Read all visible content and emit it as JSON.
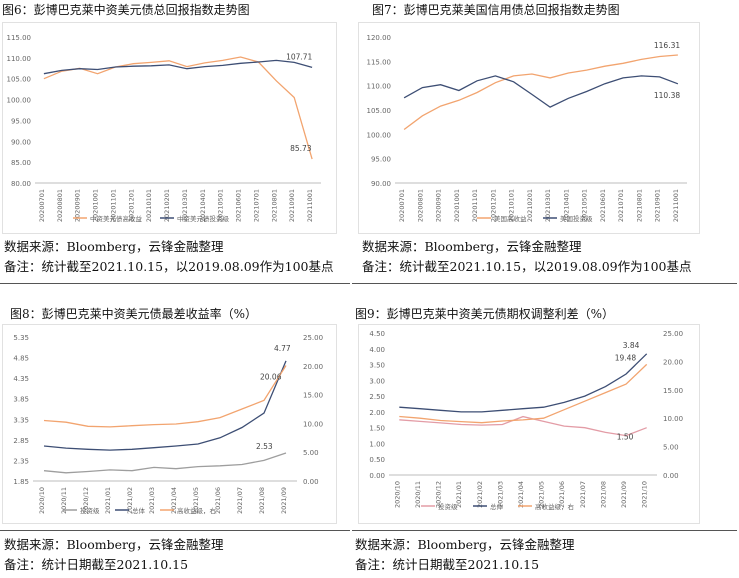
{
  "colors": {
    "orange": "#f2a46f",
    "navy": "#3d4e74",
    "gray": "#9e9e9e",
    "rose": "#e39ca6"
  },
  "panels": [
    {
      "title": "图6：彭博巴克莱中资美元债总回报指数走势图",
      "source": "数据来源：Bloomberg，云锋金融整理",
      "note": "备注：统计截至2021.10.15，以2019.08.09作为100基点"
    },
    {
      "title": "图7：彭博巴克莱美国信用债总回报指数走势图",
      "source": "数据来源：Bloomberg，云锋金融整理",
      "note": "备注：统计截至2021.10.15，以2019.08.09作为100基点"
    },
    {
      "title": "图8：彭博巴克莱中资美元债最差收益率（%）",
      "source": "数据来源：Bloomberg，云锋金融整理",
      "note": "备注：统计日期截至2021.10.15"
    },
    {
      "title": "图9：彭博巴克莱中资美元债期权调整利差（%）",
      "source": "数据来源：Bloomberg，云锋金融整理",
      "note": "备注：统计日期截至2021.10.15"
    }
  ],
  "chart_data": [
    {
      "type": "line",
      "title": "图6：彭博巴克莱中资美元债总回报指数走势图",
      "x": [
        "20200701",
        "20200801",
        "20200901",
        "20201001",
        "20201101",
        "20201201",
        "20210101",
        "20210201",
        "20210301",
        "20210401",
        "20210501",
        "20210601",
        "20210701",
        "20210801",
        "20210901",
        "20211001"
      ],
      "yticks": [
        "80.00",
        "85.00",
        "90.00",
        "95.00",
        "100.00",
        "105.00",
        "110.00",
        "115.00"
      ],
      "ylim": [
        80,
        115
      ],
      "series": [
        {
          "name": "中资美元债高收益",
          "color": "#f2a46f",
          "values": [
            105.0,
            106.8,
            107.5,
            106.2,
            107.8,
            108.6,
            108.9,
            109.3,
            107.9,
            108.8,
            109.4,
            110.2,
            109.0,
            104.5,
            100.5,
            85.73
          ]
        },
        {
          "name": "中资美元债投资级",
          "color": "#3d4e74",
          "values": [
            106.2,
            107.0,
            107.4,
            107.2,
            107.8,
            108.0,
            108.1,
            108.3,
            107.4,
            107.9,
            108.2,
            108.7,
            109.0,
            109.4,
            108.9,
            107.71
          ]
        }
      ],
      "labels": [
        {
          "text": "107.71"
        },
        {
          "text": "85.73"
        }
      ]
    },
    {
      "type": "line",
      "title": "图7：彭博巴克莱美国信用债总回报指数走势图",
      "x": [
        "20200701",
        "20200801",
        "20200901",
        "20201001",
        "20201101",
        "20201201",
        "20210101",
        "20210201",
        "20210301",
        "20210401",
        "20210501",
        "20210601",
        "20210701",
        "20210801",
        "20210901",
        "20211001"
      ],
      "yticks": [
        "90.00",
        "95.00",
        "100.00",
        "105.00",
        "110.00",
        "115.00",
        "120.00"
      ],
      "ylim": [
        90,
        120
      ],
      "series": [
        {
          "name": "美国高收益",
          "color": "#f2a46f",
          "values": [
            101.0,
            103.8,
            105.8,
            107.0,
            108.6,
            110.6,
            112.0,
            112.4,
            111.6,
            112.6,
            113.2,
            114.0,
            114.6,
            115.4,
            116.0,
            116.31
          ]
        },
        {
          "name": "美国投资级",
          "color": "#3d4e74",
          "values": [
            107.5,
            109.6,
            110.2,
            109.0,
            111.0,
            112.0,
            110.8,
            108.2,
            105.6,
            107.4,
            108.8,
            110.4,
            111.6,
            112.0,
            111.8,
            110.38
          ]
        }
      ],
      "labels": [
        {
          "text": "116.31"
        },
        {
          "text": "110.38"
        }
      ]
    },
    {
      "type": "line",
      "title": "图8：彭博巴克莱中资美元债最差收益率（%）",
      "x": [
        "2020/10",
        "2020/11",
        "2020/12",
        "2021/01",
        "2021/02",
        "2021/03",
        "2021/04",
        "2021/05",
        "2021/06",
        "2021/07",
        "2021/08",
        "2021/09"
      ],
      "yticks_left": [
        "1.85",
        "2.35",
        "2.85",
        "3.35",
        "3.85",
        "4.35",
        "4.85",
        "5.35"
      ],
      "yticks_right": [
        "0.00",
        "5.00",
        "10.00",
        "15.00",
        "20.00",
        "25.00"
      ],
      "ylim_left": [
        1.85,
        5.35
      ],
      "ylim_right": [
        0,
        25
      ],
      "series": [
        {
          "name": "投资级",
          "axis": "left",
          "color": "#9e9e9e",
          "values": [
            2.1,
            2.05,
            2.08,
            2.12,
            2.1,
            2.18,
            2.15,
            2.2,
            2.22,
            2.25,
            2.35,
            2.53
          ]
        },
        {
          "name": "总体",
          "axis": "left",
          "color": "#3d4e74",
          "values": [
            2.7,
            2.65,
            2.62,
            2.6,
            2.62,
            2.66,
            2.7,
            2.75,
            2.9,
            3.15,
            3.5,
            4.77
          ]
        },
        {
          "name": "高收益级，右",
          "axis": "right",
          "color": "#f2a46f",
          "values": [
            10.5,
            10.2,
            9.5,
            9.4,
            9.6,
            9.8,
            9.9,
            10.3,
            11.0,
            12.5,
            14.0,
            20.06
          ]
        }
      ],
      "labels": [
        {
          "text": "4.77"
        },
        {
          "text": "20.06"
        },
        {
          "text": "2.53"
        }
      ]
    },
    {
      "type": "line",
      "title": "图9：彭博巴克莱中资美元债期权调整利差（%）",
      "x": [
        "2020/10",
        "2020/11",
        "2020/12",
        "2021/01",
        "2021/02",
        "2021/03",
        "2021/04",
        "2021/05",
        "2021/06",
        "2021/07",
        "2021/08",
        "2021/09",
        "2021/10"
      ],
      "yticks_left": [
        "0.00",
        "0.50",
        "1.00",
        "1.50",
        "2.00",
        "2.50",
        "3.00",
        "3.50",
        "4.00",
        "4.50"
      ],
      "yticks_right": [
        "0.00",
        "5.00",
        "10.00",
        "15.00",
        "20.00",
        "25.00"
      ],
      "ylim_left": [
        0,
        4.5
      ],
      "ylim_right": [
        0,
        25
      ],
      "series": [
        {
          "name": "投资级",
          "axis": "left",
          "color": "#e39ca6",
          "values": [
            1.75,
            1.7,
            1.65,
            1.6,
            1.58,
            1.6,
            1.85,
            1.7,
            1.55,
            1.5,
            1.35,
            1.25,
            1.5
          ]
        },
        {
          "name": "总体",
          "axis": "left",
          "color": "#3d4e74",
          "values": [
            2.15,
            2.1,
            2.05,
            2.0,
            2.0,
            2.05,
            2.1,
            2.15,
            2.3,
            2.5,
            2.8,
            3.2,
            3.84
          ]
        },
        {
          "name": "高收益级，右",
          "axis": "right",
          "color": "#f2a46f",
          "values": [
            10.3,
            10.0,
            9.6,
            9.4,
            9.2,
            9.5,
            9.7,
            10.0,
            11.5,
            13.0,
            14.5,
            16.0,
            19.48
          ]
        }
      ],
      "labels": [
        {
          "text": "19.48"
        },
        {
          "text": "3.84"
        },
        {
          "text": "1.50"
        }
      ]
    }
  ]
}
